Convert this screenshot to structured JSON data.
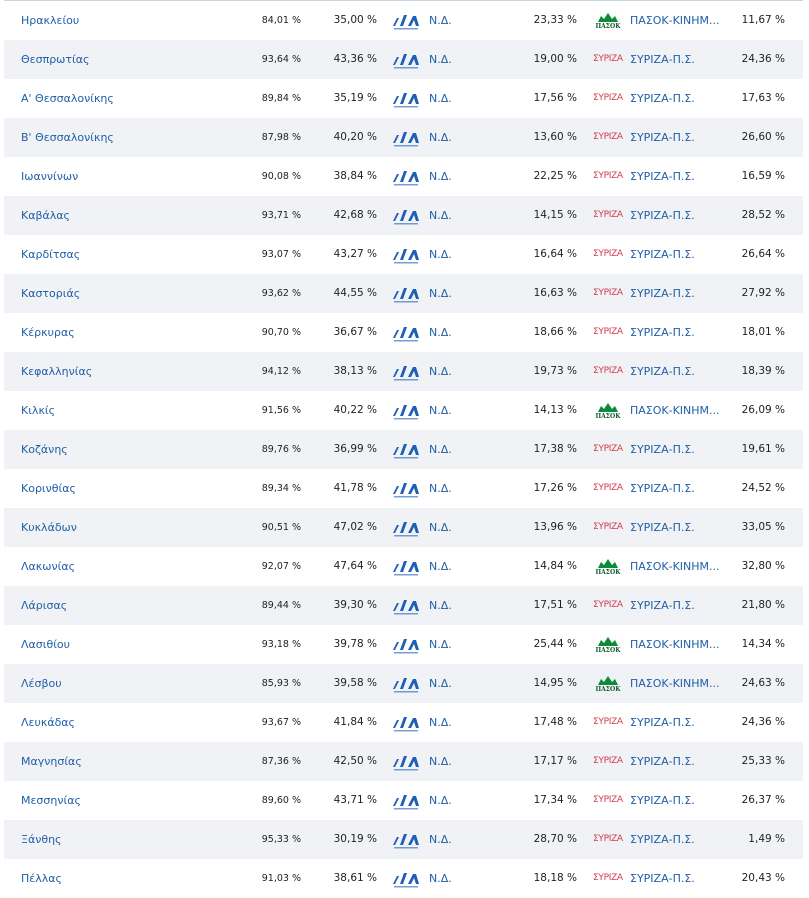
{
  "colors": {
    "link": "#1f5fa8",
    "nd": "#1d5fb7",
    "pasok": "#0a8a3a",
    "syriza": "#d33a4a",
    "stripe": "#f0f2f5"
  },
  "rows": [
    {
      "name": "Ηρακλείου",
      "turnout": "84,01 %",
      "first_pct": "35,00 %",
      "first_party": "Ν.Δ.",
      "first_logo": "nd-logo",
      "second_pct": "23,33 %",
      "second_party": "ΠΑΣΟΚ-ΚΙΝΗΜ...",
      "second_logo": "pasok-logo",
      "third_pct": "11,67 %"
    },
    {
      "name": "Θεσπρωτίας",
      "turnout": "93,64 %",
      "first_pct": "43,36 %",
      "first_party": "Ν.Δ.",
      "first_logo": "nd-logo",
      "second_pct": "19,00 %",
      "second_party": "ΣΥΡΙΖΑ-Π.Σ.",
      "second_logo": "syriza-logo",
      "third_pct": "24,36 %"
    },
    {
      "name": "Α' Θεσσαλονίκης",
      "turnout": "89,84 %",
      "first_pct": "35,19 %",
      "first_party": "Ν.Δ.",
      "first_logo": "nd-logo",
      "second_pct": "17,56 %",
      "second_party": "ΣΥΡΙΖΑ-Π.Σ.",
      "second_logo": "syriza-logo",
      "third_pct": "17,63 %"
    },
    {
      "name": "Β' Θεσσαλονίκης",
      "turnout": "87,98 %",
      "first_pct": "40,20 %",
      "first_party": "Ν.Δ.",
      "first_logo": "nd-logo",
      "second_pct": "13,60 %",
      "second_party": "ΣΥΡΙΖΑ-Π.Σ.",
      "second_logo": "syriza-logo",
      "third_pct": "26,60 %"
    },
    {
      "name": "Ιωαννίνων",
      "turnout": "90,08 %",
      "first_pct": "38,84 %",
      "first_party": "Ν.Δ.",
      "first_logo": "nd-logo",
      "second_pct": "22,25 %",
      "second_party": "ΣΥΡΙΖΑ-Π.Σ.",
      "second_logo": "syriza-logo",
      "third_pct": "16,59 %"
    },
    {
      "name": "Καβάλας",
      "turnout": "93,71 %",
      "first_pct": "42,68 %",
      "first_party": "Ν.Δ.",
      "first_logo": "nd-logo",
      "second_pct": "14,15 %",
      "second_party": "ΣΥΡΙΖΑ-Π.Σ.",
      "second_logo": "syriza-logo",
      "third_pct": "28,52 %"
    },
    {
      "name": "Καρδίτσας",
      "turnout": "93,07 %",
      "first_pct": "43,27 %",
      "first_party": "Ν.Δ.",
      "first_logo": "nd-logo",
      "second_pct": "16,64 %",
      "second_party": "ΣΥΡΙΖΑ-Π.Σ.",
      "second_logo": "syriza-logo",
      "third_pct": "26,64 %"
    },
    {
      "name": "Καστοριάς",
      "turnout": "93,62 %",
      "first_pct": "44,55 %",
      "first_party": "Ν.Δ.",
      "first_logo": "nd-logo",
      "second_pct": "16,63 %",
      "second_party": "ΣΥΡΙΖΑ-Π.Σ.",
      "second_logo": "syriza-logo",
      "third_pct": "27,92 %"
    },
    {
      "name": "Κέρκυρας",
      "turnout": "90,70 %",
      "first_pct": "36,67 %",
      "first_party": "Ν.Δ.",
      "first_logo": "nd-logo",
      "second_pct": "18,66 %",
      "second_party": "ΣΥΡΙΖΑ-Π.Σ.",
      "second_logo": "syriza-logo",
      "third_pct": "18,01 %"
    },
    {
      "name": "Κεφαλληνίας",
      "turnout": "94,12 %",
      "first_pct": "38,13 %",
      "first_party": "Ν.Δ.",
      "first_logo": "nd-logo",
      "second_pct": "19,73 %",
      "second_party": "ΣΥΡΙΖΑ-Π.Σ.",
      "second_logo": "syriza-logo",
      "third_pct": "18,39 %"
    },
    {
      "name": "Κιλκίς",
      "turnout": "91,56 %",
      "first_pct": "40,22 %",
      "first_party": "Ν.Δ.",
      "first_logo": "nd-logo",
      "second_pct": "14,13 %",
      "second_party": "ΠΑΣΟΚ-ΚΙΝΗΜ...",
      "second_logo": "pasok-logo",
      "third_pct": "26,09 %"
    },
    {
      "name": "Κοζάνης",
      "turnout": "89,76 %",
      "first_pct": "36,99 %",
      "first_party": "Ν.Δ.",
      "first_logo": "nd-logo",
      "second_pct": "17,38 %",
      "second_party": "ΣΥΡΙΖΑ-Π.Σ.",
      "second_logo": "syriza-logo",
      "third_pct": "19,61 %"
    },
    {
      "name": "Κορινθίας",
      "turnout": "89,34 %",
      "first_pct": "41,78 %",
      "first_party": "Ν.Δ.",
      "first_logo": "nd-logo",
      "second_pct": "17,26 %",
      "second_party": "ΣΥΡΙΖΑ-Π.Σ.",
      "second_logo": "syriza-logo",
      "third_pct": "24,52 %"
    },
    {
      "name": "Κυκλάδων",
      "turnout": "90,51 %",
      "first_pct": "47,02 %",
      "first_party": "Ν.Δ.",
      "first_logo": "nd-logo",
      "second_pct": "13,96 %",
      "second_party": "ΣΥΡΙΖΑ-Π.Σ.",
      "second_logo": "syriza-logo",
      "third_pct": "33,05 %"
    },
    {
      "name": "Λακωνίας",
      "turnout": "92,07 %",
      "first_pct": "47,64 %",
      "first_party": "Ν.Δ.",
      "first_logo": "nd-logo",
      "second_pct": "14,84 %",
      "second_party": "ΠΑΣΟΚ-ΚΙΝΗΜ...",
      "second_logo": "pasok-logo",
      "third_pct": "32,80 %"
    },
    {
      "name": "Λάρισας",
      "turnout": "89,44 %",
      "first_pct": "39,30 %",
      "first_party": "Ν.Δ.",
      "first_logo": "nd-logo",
      "second_pct": "17,51 %",
      "second_party": "ΣΥΡΙΖΑ-Π.Σ.",
      "second_logo": "syriza-logo",
      "third_pct": "21,80 %"
    },
    {
      "name": "Λασιθίου",
      "turnout": "93,18 %",
      "first_pct": "39,78 %",
      "first_party": "Ν.Δ.",
      "first_logo": "nd-logo",
      "second_pct": "25,44 %",
      "second_party": "ΠΑΣΟΚ-ΚΙΝΗΜ...",
      "second_logo": "pasok-logo",
      "third_pct": "14,34 %"
    },
    {
      "name": "Λέσβου",
      "turnout": "85,93 %",
      "first_pct": "39,58 %",
      "first_party": "Ν.Δ.",
      "first_logo": "nd-logo",
      "second_pct": "14,95 %",
      "second_party": "ΠΑΣΟΚ-ΚΙΝΗΜ...",
      "second_logo": "pasok-logo",
      "third_pct": "24,63 %"
    },
    {
      "name": "Λευκάδας",
      "turnout": "93,67 %",
      "first_pct": "41,84 %",
      "first_party": "Ν.Δ.",
      "first_logo": "nd-logo",
      "second_pct": "17,48 %",
      "second_party": "ΣΥΡΙΖΑ-Π.Σ.",
      "second_logo": "syriza-logo",
      "third_pct": "24,36 %"
    },
    {
      "name": "Μαγνησίας",
      "turnout": "87,36 %",
      "first_pct": "42,50 %",
      "first_party": "Ν.Δ.",
      "first_logo": "nd-logo",
      "second_pct": "17,17 %",
      "second_party": "ΣΥΡΙΖΑ-Π.Σ.",
      "second_logo": "syriza-logo",
      "third_pct": "25,33 %"
    },
    {
      "name": "Μεσσηνίας",
      "turnout": "89,60 %",
      "first_pct": "43,71 %",
      "first_party": "Ν.Δ.",
      "first_logo": "nd-logo",
      "second_pct": "17,34 %",
      "second_party": "ΣΥΡΙΖΑ-Π.Σ.",
      "second_logo": "syriza-logo",
      "third_pct": "26,37 %"
    },
    {
      "name": "Ξάνθης",
      "turnout": "95,33 %",
      "first_pct": "30,19 %",
      "first_party": "Ν.Δ.",
      "first_logo": "nd-logo",
      "second_pct": "28,70 %",
      "second_party": "ΣΥΡΙΖΑ-Π.Σ.",
      "second_logo": "syriza-logo",
      "third_pct": "1,49 %"
    },
    {
      "name": "Πέλλας",
      "turnout": "91,03 %",
      "first_pct": "38,61 %",
      "first_party": "Ν.Δ.",
      "first_logo": "nd-logo",
      "second_pct": "18,18 %",
      "second_party": "ΣΥΡΙΖΑ-Π.Σ.",
      "second_logo": "syriza-logo",
      "third_pct": "20,43 %"
    }
  ],
  "logo_text": {
    "syriza": "ΣΥΡΙΖΑ",
    "pasok": "ΠΑΣΟΚ"
  }
}
